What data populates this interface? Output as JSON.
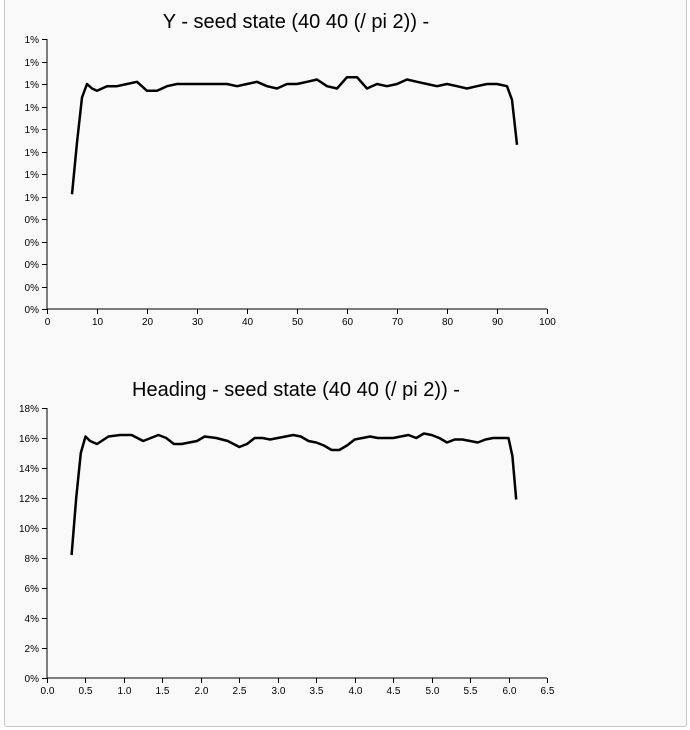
{
  "chart_data": [
    {
      "type": "line",
      "title": "Y - seed state (40 40 (/ pi 2)) -",
      "xlabel": "",
      "ylabel": "",
      "xlim": [
        0,
        100
      ],
      "ylim": [
        0,
        12
      ],
      "x_ticks": [
        0,
        10,
        20,
        30,
        40,
        50,
        60,
        70,
        80,
        90,
        100
      ],
      "x_tick_labels": [
        "0",
        "10",
        "20",
        "30",
        "40",
        "50",
        "60",
        "70",
        "80",
        "90",
        "100"
      ],
      "y_ticks": [
        0,
        1,
        2,
        3,
        4,
        5,
        6,
        7,
        8,
        9,
        10,
        11,
        12
      ],
      "y_tick_labels": [
        "0%",
        "0%",
        "0%",
        "0%",
        "0%",
        "1%",
        "1%",
        "1%",
        "1%",
        "1%",
        "1%",
        "1%",
        "1%"
      ],
      "series": [
        {
          "x": [
            5,
            6,
            7,
            8,
            9,
            10,
            12,
            14,
            16,
            18,
            20,
            22,
            24,
            26,
            28,
            30,
            32,
            34,
            36,
            38,
            40,
            42,
            44,
            46,
            48,
            50,
            52,
            54,
            56,
            58,
            60,
            62,
            64,
            66,
            68,
            70,
            72,
            74,
            76,
            78,
            80,
            82,
            84,
            86,
            88,
            90,
            92,
            93,
            94
          ],
          "y": [
            5.1,
            7.4,
            9.4,
            10.0,
            9.8,
            9.7,
            9.9,
            9.9,
            10.0,
            10.1,
            9.7,
            9.7,
            9.9,
            10.0,
            10.0,
            10.0,
            10.0,
            10.0,
            10.0,
            9.9,
            10.0,
            10.1,
            9.9,
            9.8,
            10.0,
            10.0,
            10.1,
            10.2,
            9.9,
            9.8,
            10.3,
            10.3,
            9.8,
            10.0,
            9.9,
            10.0,
            10.2,
            10.1,
            10.0,
            9.9,
            10.0,
            9.9,
            9.8,
            9.9,
            10.0,
            10.0,
            9.9,
            9.3,
            7.3
          ]
        }
      ]
    },
    {
      "type": "line",
      "title": "Heading - seed state (40 40 (/ pi 2)) -",
      "xlabel": "",
      "ylabel": "",
      "xlim": [
        0,
        6.5
      ],
      "ylim": [
        0,
        18
      ],
      "x_ticks": [
        0,
        0.5,
        1,
        1.5,
        2,
        2.5,
        3,
        3.5,
        4,
        4.5,
        5,
        5.5,
        6,
        6.5
      ],
      "x_tick_labels": [
        "0.0",
        "0.5",
        "1.0",
        "1.5",
        "2.0",
        "2.5",
        "3.0",
        "3.5",
        "4.0",
        "4.5",
        "5.0",
        "5.5",
        "6.0",
        "6.5"
      ],
      "y_ticks": [
        0,
        2,
        4,
        6,
        8,
        10,
        12,
        14,
        16,
        18
      ],
      "y_tick_labels": [
        "0%",
        "2%",
        "4%",
        "6%",
        "8%",
        "10%",
        "12%",
        "14%",
        "16%",
        "18%"
      ],
      "series": [
        {
          "x": [
            0.32,
            0.38,
            0.44,
            0.5,
            0.56,
            0.65,
            0.8,
            0.95,
            1.1,
            1.25,
            1.35,
            1.45,
            1.55,
            1.65,
            1.75,
            1.85,
            1.95,
            2.05,
            2.2,
            2.35,
            2.5,
            2.6,
            2.7,
            2.8,
            2.9,
            3.0,
            3.1,
            3.2,
            3.3,
            3.4,
            3.5,
            3.6,
            3.7,
            3.8,
            3.9,
            4.0,
            4.1,
            4.2,
            4.3,
            4.4,
            4.5,
            4.6,
            4.7,
            4.8,
            4.9,
            5.0,
            5.1,
            5.2,
            5.3,
            5.4,
            5.5,
            5.6,
            5.7,
            5.8,
            5.9,
            6.0,
            6.05,
            6.1
          ],
          "y": [
            8.2,
            12.0,
            15.0,
            16.1,
            15.8,
            15.6,
            16.1,
            16.2,
            16.2,
            15.8,
            16.0,
            16.2,
            16.0,
            15.6,
            15.6,
            15.7,
            15.8,
            16.1,
            16.0,
            15.8,
            15.4,
            15.6,
            16.0,
            16.0,
            15.9,
            16.0,
            16.1,
            16.2,
            16.1,
            15.8,
            15.7,
            15.5,
            15.2,
            15.2,
            15.5,
            15.9,
            16.0,
            16.1,
            16.0,
            16.0,
            16.0,
            16.1,
            16.2,
            16.0,
            16.3,
            16.2,
            16.0,
            15.7,
            15.9,
            15.9,
            15.8,
            15.7,
            15.9,
            16.0,
            16.0,
            16.0,
            14.8,
            11.9
          ]
        }
      ]
    }
  ]
}
